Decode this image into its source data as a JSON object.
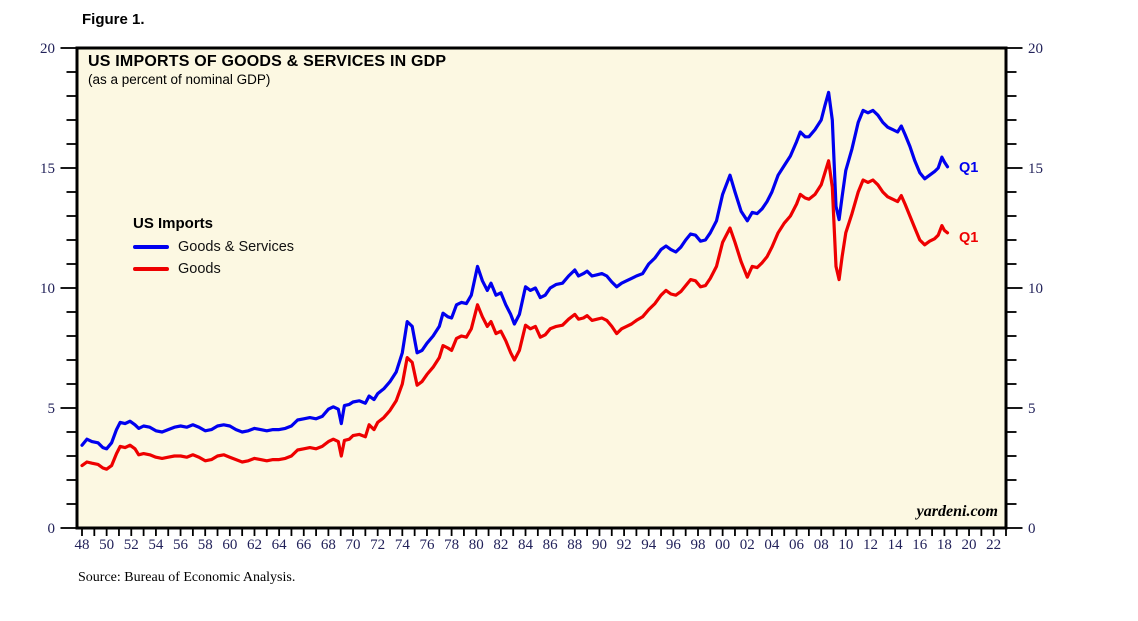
{
  "figure_label": "Figure 1.",
  "chart": {
    "title": "US IMPORTS OF GOODS & SERVICES IN GDP",
    "subtitle": "(as a percent of nominal GDP)"
  },
  "legend": {
    "title": "US Imports",
    "items": [
      {
        "label": "Goods & Services",
        "color": "#0000ef"
      },
      {
        "label": "Goods",
        "color": "#ee0000"
      }
    ]
  },
  "annotations": {
    "blue_end_label": "Q1",
    "red_end_label": "Q1"
  },
  "watermark": "yardeni.com",
  "source": "Source: Bureau of Economic Analysis.",
  "colors": {
    "plot_bg": "#fcf8e2",
    "frame": "#000000",
    "tick_label": "#22225a",
    "blue": "#0000ef",
    "red": "#ee0000"
  },
  "chart_data": {
    "type": "line",
    "title": "US IMPORTS OF GOODS & SERVICES IN GDP",
    "subtitle": "(as a percent of nominal GDP)",
    "xlabel": "",
    "ylabel": "percent of nominal GDP",
    "grid": false,
    "legend_position": "inside-left",
    "ylim": [
      0,
      20
    ],
    "y_major_ticks": [
      0,
      5,
      10,
      15,
      20
    ],
    "y_tick_labels": [
      "0",
      "5",
      "10",
      "15",
      "20"
    ],
    "y_minor_step": 1,
    "x_axis": {
      "start": 1948,
      "end": 2023,
      "minor_step": 1,
      "label_step": 2
    },
    "x_tick_labels": [
      "48",
      "50",
      "52",
      "54",
      "56",
      "58",
      "60",
      "62",
      "64",
      "66",
      "68",
      "70",
      "72",
      "74",
      "76",
      "78",
      "80",
      "82",
      "84",
      "86",
      "88",
      "90",
      "92",
      "94",
      "96",
      "98",
      "00",
      "02",
      "04",
      "06",
      "08",
      "10",
      "12",
      "14",
      "16",
      "18",
      "20",
      "22"
    ],
    "x": [
      1948.0,
      1948.4,
      1948.8,
      1949.3,
      1949.7,
      1950.0,
      1950.4,
      1950.8,
      1951.1,
      1951.5,
      1951.9,
      1952.3,
      1952.6,
      1953.0,
      1953.5,
      1954.0,
      1954.5,
      1955.0,
      1955.5,
      1956.0,
      1956.5,
      1957.0,
      1957.5,
      1958.0,
      1958.5,
      1959.0,
      1959.5,
      1960.0,
      1960.5,
      1961.0,
      1961.5,
      1962.0,
      1962.5,
      1963.0,
      1963.5,
      1964.0,
      1964.5,
      1965.0,
      1965.5,
      1966.0,
      1966.5,
      1967.0,
      1967.5,
      1968.0,
      1968.4,
      1968.8,
      1969.05,
      1969.3,
      1969.7,
      1970.0,
      1970.5,
      1971.0,
      1971.3,
      1971.7,
      1972.0,
      1972.5,
      1973.0,
      1973.5,
      1974.0,
      1974.4,
      1974.8,
      1975.2,
      1975.6,
      1976.0,
      1976.5,
      1977.0,
      1977.3,
      1977.7,
      1978.0,
      1978.4,
      1978.8,
      1979.2,
      1979.6,
      1980.1,
      1980.5,
      1980.9,
      1981.2,
      1981.6,
      1982.0,
      1982.4,
      1982.8,
      1983.1,
      1983.5,
      1984.0,
      1984.4,
      1984.8,
      1985.2,
      1985.6,
      1986.0,
      1986.5,
      1987.0,
      1987.5,
      1988.0,
      1988.3,
      1988.7,
      1989.0,
      1989.4,
      1989.8,
      1990.2,
      1990.6,
      1991.0,
      1991.4,
      1991.8,
      1992.2,
      1992.6,
      1993.0,
      1993.5,
      1994.0,
      1994.5,
      1995.0,
      1995.4,
      1995.8,
      1996.2,
      1996.6,
      1997.0,
      1997.4,
      1997.8,
      1998.2,
      1998.6,
      1999.0,
      1999.5,
      2000.0,
      2000.6,
      2001.0,
      2001.5,
      2002.0,
      2002.4,
      2002.8,
      2003.2,
      2003.6,
      2004.0,
      2004.5,
      2005.0,
      2005.5,
      2006.0,
      2006.3,
      2006.7,
      2007.0,
      2007.5,
      2008.0,
      2008.3,
      2008.6,
      2008.9,
      2009.2,
      2009.45,
      2009.7,
      2010.0,
      2010.5,
      2011.0,
      2011.4,
      2011.8,
      2012.2,
      2012.6,
      2013.0,
      2013.4,
      2013.8,
      2014.2,
      2014.5,
      2014.8,
      2015.2,
      2015.6,
      2016.0,
      2016.4,
      2016.8,
      2017.2,
      2017.5,
      2017.8,
      2018.0,
      2018.25
    ],
    "series": [
      {
        "name": "Goods & Services",
        "color": "#0000ef",
        "end_label": "Q1",
        "values": [
          3.45,
          3.7,
          3.6,
          3.55,
          3.35,
          3.3,
          3.55,
          4.1,
          4.4,
          4.35,
          4.45,
          4.3,
          4.15,
          4.25,
          4.2,
          4.05,
          4.0,
          4.1,
          4.2,
          4.25,
          4.2,
          4.3,
          4.2,
          4.05,
          4.1,
          4.25,
          4.3,
          4.25,
          4.1,
          4.0,
          4.05,
          4.15,
          4.1,
          4.05,
          4.1,
          4.1,
          4.15,
          4.25,
          4.5,
          4.55,
          4.6,
          4.55,
          4.65,
          4.95,
          5.05,
          4.95,
          4.35,
          5.1,
          5.15,
          5.25,
          5.3,
          5.2,
          5.5,
          5.35,
          5.6,
          5.8,
          6.1,
          6.5,
          7.3,
          8.6,
          8.4,
          7.3,
          7.4,
          7.7,
          8.0,
          8.4,
          8.95,
          8.8,
          8.75,
          9.3,
          9.4,
          9.35,
          9.7,
          10.9,
          10.3,
          9.9,
          10.2,
          9.7,
          9.8,
          9.3,
          8.9,
          8.5,
          8.9,
          10.05,
          9.9,
          10.0,
          9.6,
          9.7,
          10.0,
          10.15,
          10.2,
          10.5,
          10.75,
          10.5,
          10.6,
          10.7,
          10.5,
          10.55,
          10.6,
          10.5,
          10.25,
          10.05,
          10.2,
          10.3,
          10.4,
          10.5,
          10.6,
          11.0,
          11.25,
          11.6,
          11.75,
          11.6,
          11.5,
          11.7,
          12.0,
          12.25,
          12.2,
          11.95,
          12.0,
          12.3,
          12.8,
          13.9,
          14.7,
          14.0,
          13.2,
          12.8,
          13.15,
          13.1,
          13.3,
          13.6,
          14.0,
          14.7,
          15.1,
          15.5,
          16.1,
          16.5,
          16.3,
          16.3,
          16.6,
          17.0,
          17.6,
          18.15,
          17.0,
          13.4,
          12.85,
          13.8,
          14.9,
          15.8,
          16.9,
          17.4,
          17.3,
          17.4,
          17.2,
          16.9,
          16.7,
          16.6,
          16.5,
          16.75,
          16.4,
          15.9,
          15.3,
          14.8,
          14.55,
          14.7,
          14.85,
          15.0,
          15.45,
          15.25,
          15.05
        ]
      },
      {
        "name": "Goods",
        "color": "#ee0000",
        "end_label": "Q1",
        "values": [
          2.6,
          2.75,
          2.7,
          2.65,
          2.5,
          2.45,
          2.6,
          3.1,
          3.4,
          3.35,
          3.45,
          3.3,
          3.05,
          3.1,
          3.05,
          2.95,
          2.9,
          2.95,
          3.0,
          3.0,
          2.95,
          3.05,
          2.95,
          2.8,
          2.85,
          3.0,
          3.05,
          2.95,
          2.85,
          2.75,
          2.8,
          2.9,
          2.85,
          2.8,
          2.85,
          2.85,
          2.9,
          3.0,
          3.25,
          3.3,
          3.35,
          3.3,
          3.4,
          3.6,
          3.7,
          3.6,
          3.0,
          3.65,
          3.7,
          3.85,
          3.9,
          3.8,
          4.3,
          4.1,
          4.4,
          4.6,
          4.9,
          5.3,
          6.0,
          7.1,
          6.9,
          5.95,
          6.1,
          6.4,
          6.7,
          7.1,
          7.6,
          7.5,
          7.4,
          7.9,
          8.0,
          7.95,
          8.3,
          9.3,
          8.8,
          8.4,
          8.6,
          8.1,
          8.2,
          7.8,
          7.3,
          7.0,
          7.4,
          8.45,
          8.3,
          8.4,
          7.95,
          8.05,
          8.3,
          8.4,
          8.45,
          8.7,
          8.9,
          8.7,
          8.75,
          8.85,
          8.65,
          8.7,
          8.75,
          8.65,
          8.4,
          8.1,
          8.3,
          8.4,
          8.5,
          8.65,
          8.8,
          9.1,
          9.35,
          9.7,
          9.9,
          9.75,
          9.7,
          9.85,
          10.1,
          10.35,
          10.3,
          10.05,
          10.1,
          10.4,
          10.9,
          11.9,
          12.5,
          11.9,
          11.1,
          10.45,
          10.9,
          10.85,
          11.05,
          11.3,
          11.7,
          12.3,
          12.7,
          13.0,
          13.5,
          13.9,
          13.75,
          13.7,
          13.9,
          14.3,
          14.8,
          15.3,
          14.2,
          10.9,
          10.35,
          11.3,
          12.3,
          13.1,
          14.0,
          14.5,
          14.4,
          14.5,
          14.3,
          14.0,
          13.8,
          13.7,
          13.6,
          13.85,
          13.5,
          13.0,
          12.5,
          12.0,
          11.8,
          11.95,
          12.05,
          12.2,
          12.6,
          12.4,
          12.3
        ]
      }
    ]
  }
}
